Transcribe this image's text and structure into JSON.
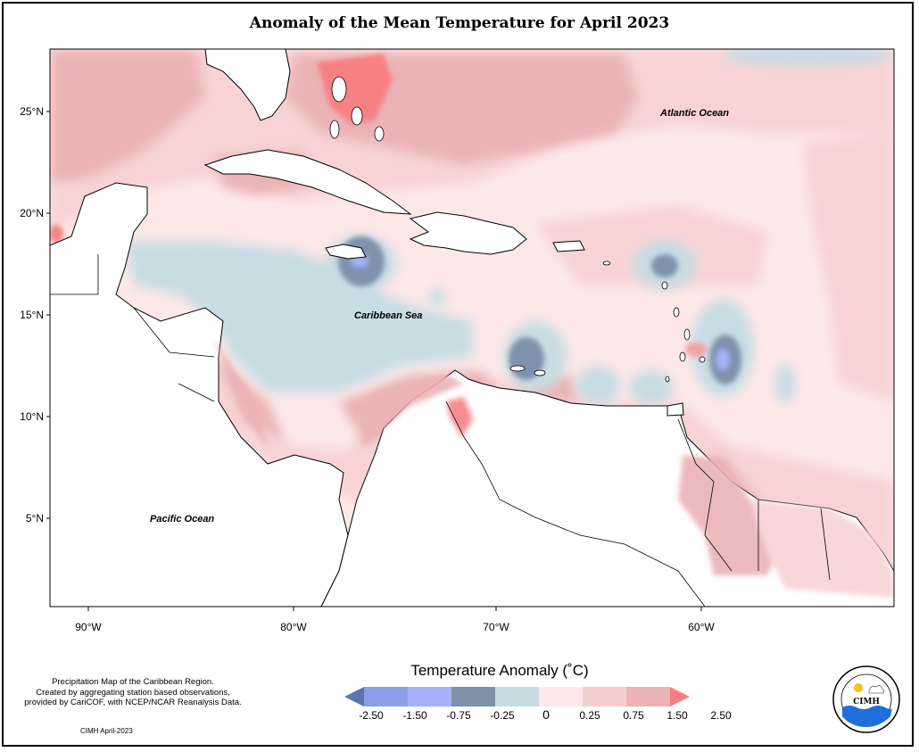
{
  "title": "Anomaly of the Mean Temperature for April 2023",
  "map": {
    "lat_labels": [
      "25°N",
      "20°N",
      "15°N",
      "10°N",
      "5°N"
    ],
    "lon_labels": [
      "90°W",
      "80°W",
      "70°W",
      "60°W"
    ],
    "ocean_labels": {
      "atlantic": "Atlantic Ocean",
      "caribbean": "Caribbean Sea",
      "pacific": "Pacific Ocean"
    }
  },
  "note": {
    "line1": "Precipitation Map of the Caribbean Region.",
    "line2": "Created by aggregating station based observations,",
    "line3": "provided by CariCOF, with NCEP/NCAR Reanalysis Data."
  },
  "credit": "CIMH April-2023",
  "legend": {
    "title": "Temperature Anomaly (˚C)",
    "ticks": [
      "-2.50",
      "-1.50",
      "-0.75",
      "-0.25",
      "0",
      "0.25",
      "0.75",
      "1.50",
      "2.50"
    ],
    "colors": [
      "#5f73ad",
      "#8d9ee8",
      "#a5b2fb",
      "#7d91aa",
      "#c7dbe3",
      "#fde8e8",
      "#f5cfcf",
      "#ecb2b4",
      "#f67f82"
    ]
  },
  "logo": {
    "text": "CIMH"
  },
  "colors": {
    "warm_light": "#fde8e8",
    "warm_mid": "#f7d3d4",
    "warm_strong": "#ebb3b5",
    "hot": "#f68183",
    "cool_light": "#c8dce4",
    "cool_mid": "#7e92ab",
    "cool_strong": "#a3b0f8"
  }
}
